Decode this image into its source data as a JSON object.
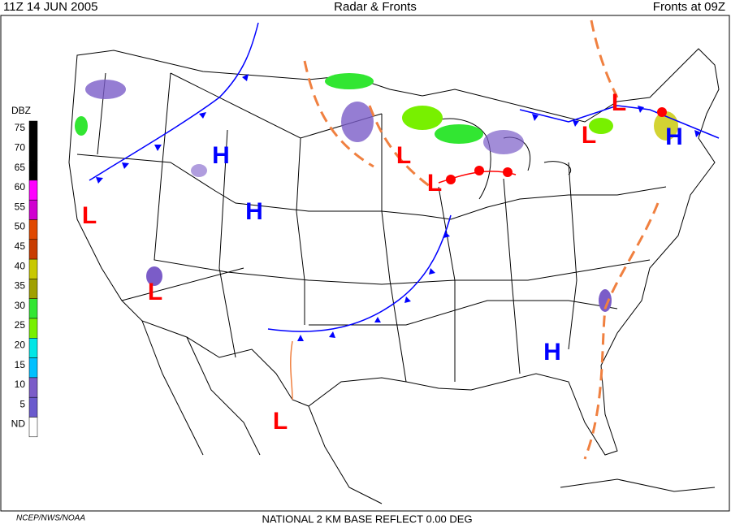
{
  "header": {
    "left": "11Z  14 JUN  2005",
    "center": "Radar & Fronts",
    "right": "Fronts at 09Z"
  },
  "legend": {
    "title": "DBZ",
    "levels": [
      {
        "label": 75,
        "color": "#000000"
      },
      {
        "label": 70,
        "color": "#000000"
      },
      {
        "label": 65,
        "color": "#000000"
      },
      {
        "label": 60,
        "color": "#ff00ff"
      },
      {
        "label": 55,
        "color": "#d000d0"
      },
      {
        "label": 50,
        "color": "#e04800"
      },
      {
        "label": 45,
        "color": "#c83c00"
      },
      {
        "label": 40,
        "color": "#c8c800"
      },
      {
        "label": 35,
        "color": "#a0a000"
      },
      {
        "label": 30,
        "color": "#32e632"
      },
      {
        "label": 25,
        "color": "#78f000"
      },
      {
        "label": 20,
        "color": "#00e6e6"
      },
      {
        "label": 15,
        "color": "#00c0ff"
      },
      {
        "label": 10,
        "color": "#7b5cc8"
      },
      {
        "label": 5,
        "color": "#6a5acd"
      },
      {
        "label": "ND",
        "color": "#ffffff"
      }
    ]
  },
  "centers": [
    "H",
    "H",
    "H",
    "H",
    "L",
    "L",
    "L",
    "L",
    "L",
    "L",
    "L"
  ],
  "footer": {
    "left": "NCEP/NWS/NOAA",
    "center": "NATIONAL 2 KM BASE REFLECT 0.00 DEG"
  }
}
